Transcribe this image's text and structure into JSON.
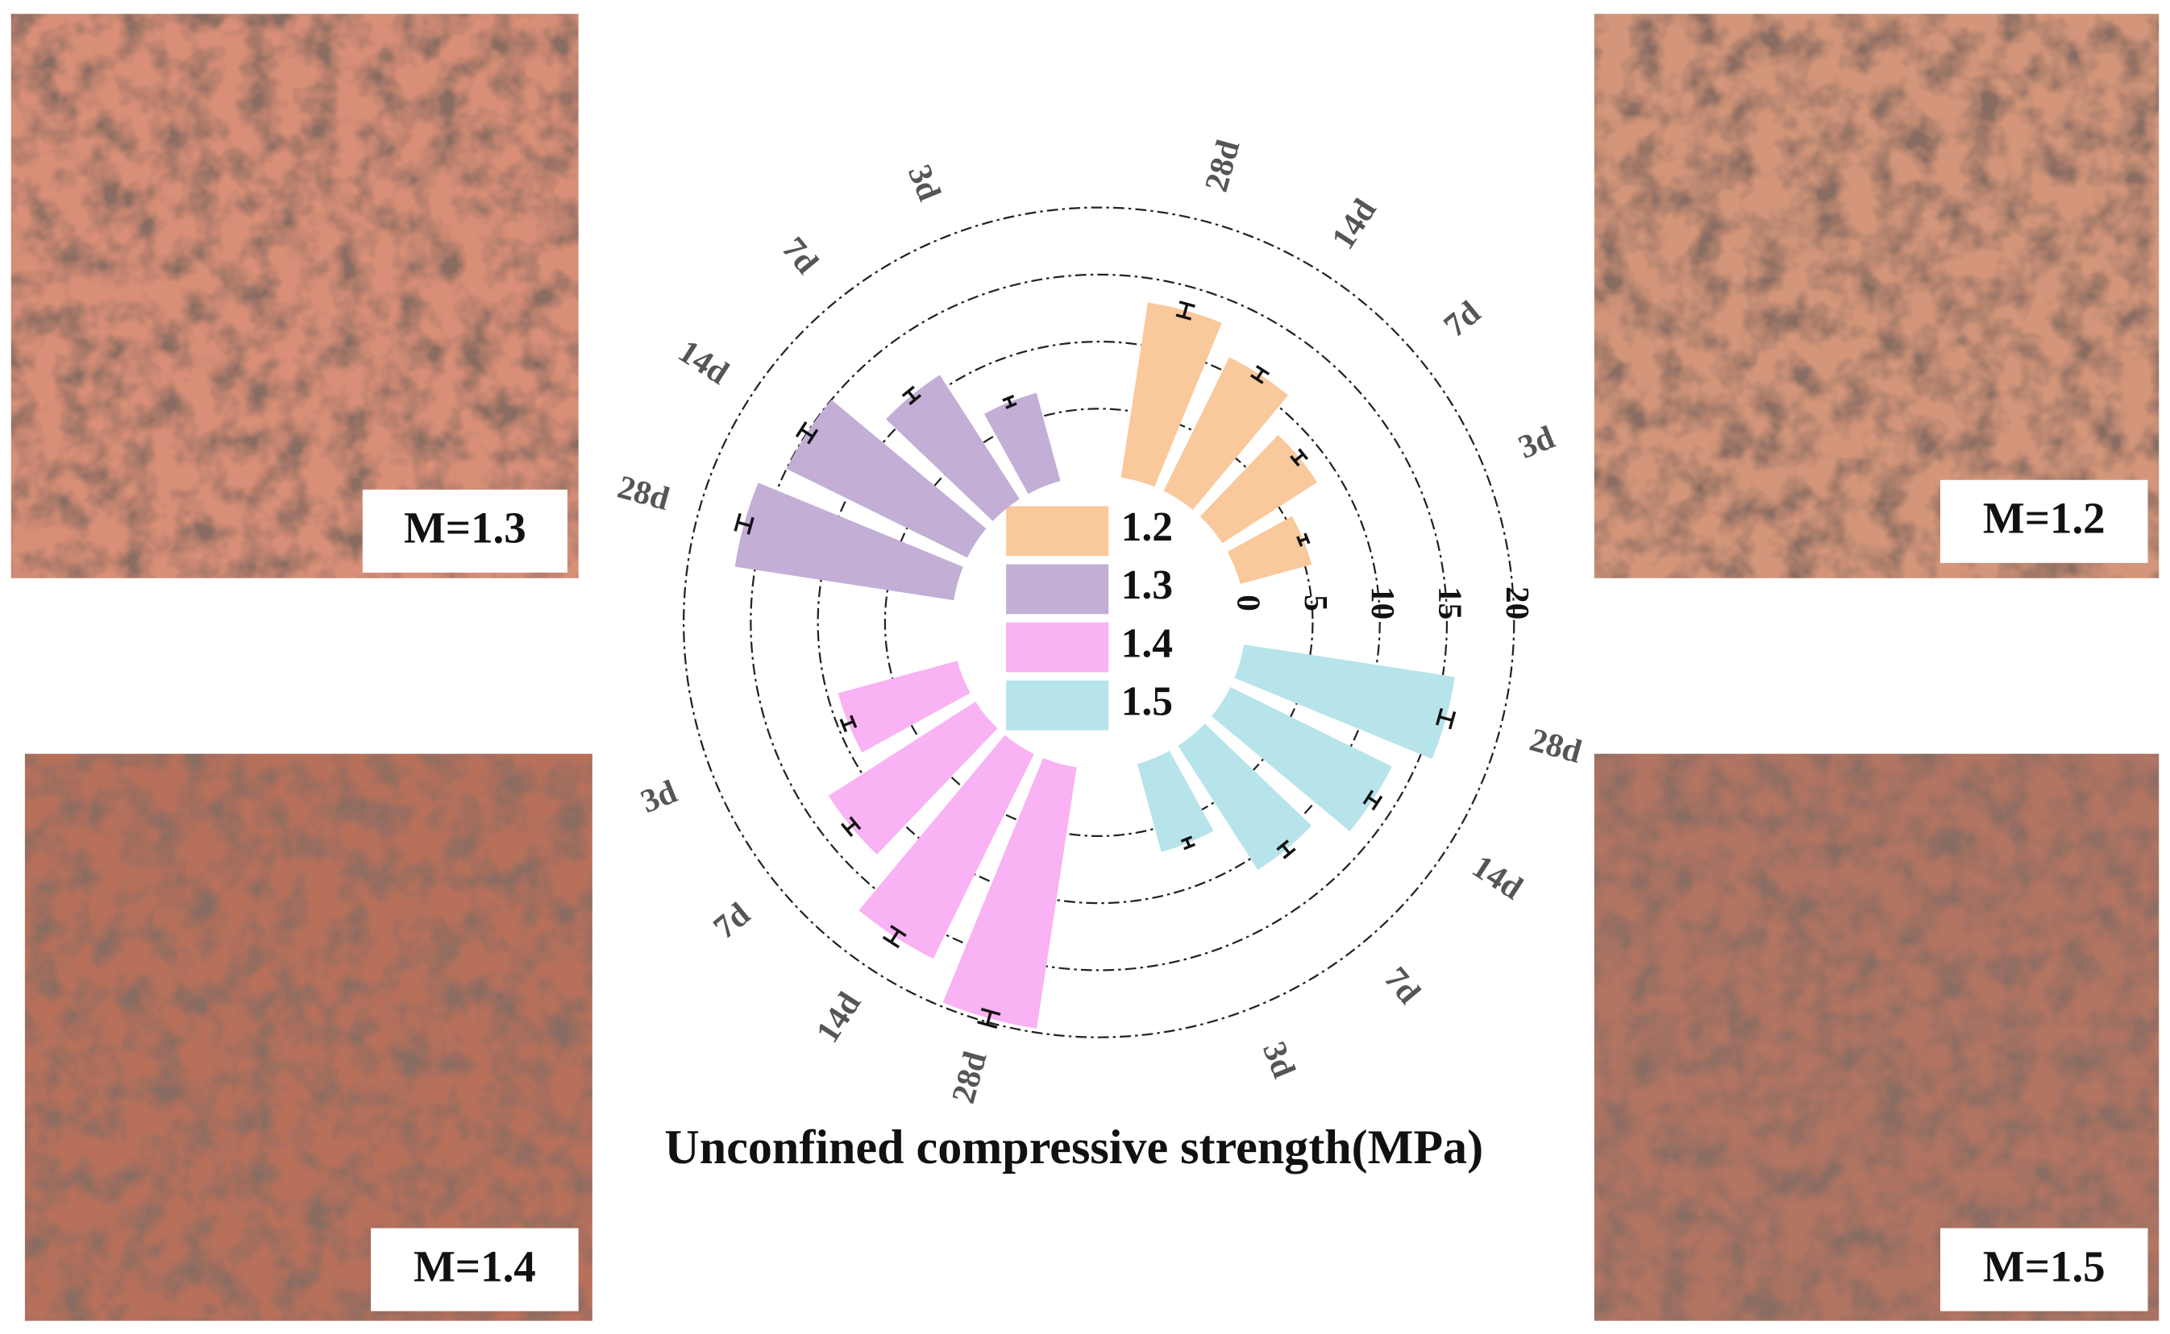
{
  "chart_data": {
    "type": "radial_bar",
    "title": "Unconfined compressive strength(MPa)",
    "categories": [
      "3d",
      "7d",
      "14d",
      "28d"
    ],
    "series": [
      {
        "name": "1.2",
        "color": "#f9c89b",
        "values": [
          5.5,
          8.4,
          11.1,
          13.2
        ],
        "errors": [
          0.3,
          0.4,
          0.4,
          0.5
        ]
      },
      {
        "name": "1.3",
        "color": "#c3aed6",
        "values": [
          6.8,
          11.0,
          15.0,
          16.5
        ],
        "errors": [
          0.3,
          0.4,
          0.5,
          0.5
        ]
      },
      {
        "name": "1.4",
        "color": "#f9b2f3",
        "values": [
          9.2,
          13.0,
          17.0,
          19.7
        ],
        "errors": [
          0.4,
          0.4,
          0.5,
          0.5
        ]
      },
      {
        "name": "1.5",
        "color": "#b6e4ea",
        "values": [
          6.8,
          11.0,
          13.4,
          15.9
        ],
        "errors": [
          0.3,
          0.4,
          0.4,
          0.5
        ]
      }
    ],
    "rlim": [
      0,
      20
    ],
    "rticks": [
      0,
      5,
      10,
      15,
      20
    ],
    "grid": true
  },
  "panels": [
    {
      "label": "M=1.3"
    },
    {
      "label": "M=1.2"
    },
    {
      "label": "M=1.4"
    },
    {
      "label": "M=1.5"
    }
  ]
}
